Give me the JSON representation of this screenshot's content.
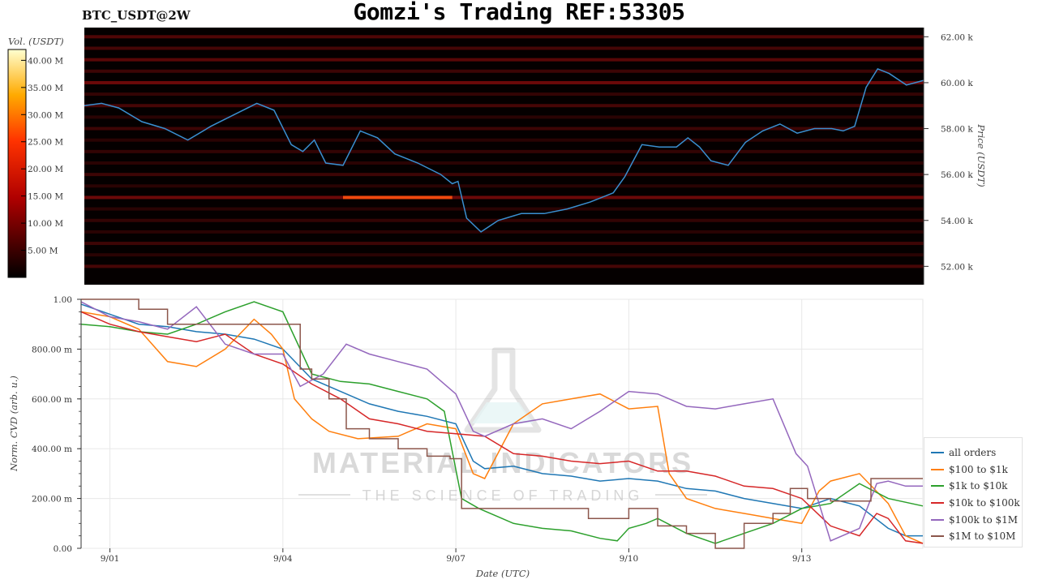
{
  "header": {
    "title": "Gomzi's Trading REF:53305",
    "symbol": "BTC_USDT@2W"
  },
  "watermark": {
    "brand": "MATERIAL INDICATORS",
    "tagline": "THE SCIENCE OF TRADING"
  },
  "colors": {
    "all_orders": "#1f77b4",
    "100_1k": "#ff7f0e",
    "1k_10k": "#2ca02c",
    "10k_100k": "#d62728",
    "100k_1M": "#9467bd",
    "1M_10M": "#8c564b",
    "price_line": "#3a8fd0"
  },
  "chart_data": [
    {
      "type": "heatmap",
      "colorbar": {
        "label": "Vol. (USDT)",
        "range": [
          0,
          42
        ],
        "ticks": [
          "5.00 M",
          "10.00 M",
          "15.00 M",
          "20.00 M",
          "25.00 M",
          "30.00 M",
          "35.00 M",
          "40.00 M"
        ],
        "tick_values": [
          5,
          10,
          15,
          20,
          25,
          30,
          35,
          40
        ]
      },
      "price_axis": {
        "label": "Price (USDT)",
        "range": [
          51.2,
          62.4
        ],
        "ticks": [
          "52.00 k",
          "54.00 k",
          "56.00 k",
          "58.00 k",
          "60.00 k",
          "62.00 k"
        ],
        "tick_values": [
          52,
          54,
          56,
          58,
          60,
          62
        ]
      },
      "x_range": [
        0,
        14.6
      ],
      "wall_levels": [
        52,
        52.5,
        53,
        53.5,
        54,
        54.5,
        55,
        55.5,
        56,
        56.5,
        57,
        57.5,
        58,
        58.5,
        59,
        59.5,
        60,
        60.5,
        61,
        61.5,
        62
      ],
      "wall_intensity": [
        0.35,
        0.2,
        0.3,
        0.2,
        0.25,
        0.2,
        0.55,
        0.2,
        0.3,
        0.2,
        0.25,
        0.2,
        0.3,
        0.2,
        0.35,
        0.25,
        0.55,
        0.3,
        0.45,
        0.35,
        0.4
      ],
      "price_series": {
        "x": [
          0,
          0.3,
          0.6,
          1.0,
          1.4,
          1.8,
          2.2,
          2.6,
          3.0,
          3.3,
          3.6,
          3.8,
          4.0,
          4.2,
          4.5,
          4.8,
          5.1,
          5.4,
          5.8,
          6.2,
          6.4,
          6.5,
          6.65,
          6.9,
          7.2,
          7.6,
          8.0,
          8.4,
          8.8,
          9.2,
          9.4,
          9.7,
          10.0,
          10.3,
          10.5,
          10.7,
          10.9,
          11.2,
          11.5,
          11.8,
          12.1,
          12.4,
          12.7,
          13.0,
          13.2,
          13.4,
          13.6,
          13.8,
          14.0,
          14.3,
          14.6
        ],
        "y": [
          59.0,
          59.1,
          58.9,
          58.3,
          58.0,
          57.5,
          58.1,
          58.6,
          59.1,
          58.8,
          57.3,
          57.0,
          57.5,
          56.5,
          56.4,
          57.9,
          57.6,
          56.9,
          56.5,
          56.0,
          55.6,
          55.7,
          54.1,
          53.5,
          54.0,
          54.3,
          54.3,
          54.5,
          54.8,
          55.2,
          55.9,
          57.3,
          57.2,
          57.2,
          57.6,
          57.2,
          56.6,
          56.4,
          57.4,
          57.9,
          58.2,
          57.8,
          58.0,
          58.0,
          57.9,
          58.1,
          59.8,
          60.6,
          60.4,
          59.9,
          60.1
        ]
      }
    },
    {
      "type": "line",
      "xlabel": "Date (UTC)",
      "ylabel": "Norm. CVD (arb. u.)",
      "x_ticks": [
        "9/01",
        "9/04",
        "9/07",
        "9/10",
        "9/13"
      ],
      "x_tick_values": [
        0.5,
        3.5,
        6.5,
        9.5,
        12.5
      ],
      "xlim": [
        0,
        14.6
      ],
      "ylim": [
        0,
        1
      ],
      "y_ticks": [
        "0.00",
        "200.00 m",
        "400.00 m",
        "600.00 m",
        "800.00 m",
        "1.00"
      ],
      "y_tick_values": [
        0,
        0.2,
        0.4,
        0.6,
        0.8,
        1.0
      ],
      "legend_position": "bottom-right",
      "series": [
        {
          "name": "all orders",
          "x": [
            0,
            0.5,
            1.0,
            1.5,
            2.0,
            2.5,
            3.0,
            3.5,
            4.0,
            4.5,
            5.0,
            5.5,
            6.0,
            6.5,
            6.8,
            7.0,
            7.5,
            8.0,
            8.5,
            9.0,
            9.5,
            10.0,
            10.5,
            11.0,
            11.5,
            12.0,
            12.5,
            13.0,
            13.5,
            14.0,
            14.3,
            14.6
          ],
          "y": [
            0.98,
            0.94,
            0.9,
            0.89,
            0.87,
            0.86,
            0.84,
            0.8,
            0.68,
            0.63,
            0.58,
            0.55,
            0.53,
            0.5,
            0.35,
            0.32,
            0.33,
            0.3,
            0.29,
            0.27,
            0.28,
            0.27,
            0.24,
            0.23,
            0.2,
            0.18,
            0.16,
            0.2,
            0.17,
            0.08,
            0.05,
            0.05
          ]
        },
        {
          "name": "$100 to $1k",
          "x": [
            0,
            0.5,
            1.0,
            1.5,
            2.0,
            2.5,
            3.0,
            3.3,
            3.5,
            3.7,
            4.0,
            4.3,
            4.8,
            5.5,
            6.0,
            6.5,
            6.8,
            7.0,
            7.5,
            8.0,
            8.5,
            9.0,
            9.5,
            10.0,
            10.2,
            10.5,
            11.0,
            11.5,
            12.0,
            12.5,
            12.8,
            13.0,
            13.5,
            14.0,
            14.3,
            14.6
          ],
          "y": [
            0.95,
            0.93,
            0.88,
            0.75,
            0.73,
            0.8,
            0.92,
            0.86,
            0.8,
            0.6,
            0.52,
            0.47,
            0.44,
            0.45,
            0.5,
            0.48,
            0.3,
            0.28,
            0.5,
            0.58,
            0.6,
            0.62,
            0.56,
            0.57,
            0.3,
            0.2,
            0.16,
            0.14,
            0.12,
            0.1,
            0.23,
            0.27,
            0.3,
            0.18,
            0.05,
            0.02
          ]
        },
        {
          "name": "$1k to $10k",
          "x": [
            0,
            0.5,
            1.0,
            1.5,
            2.0,
            2.5,
            3.0,
            3.5,
            4.0,
            4.5,
            5.0,
            5.5,
            6.0,
            6.3,
            6.6,
            6.9,
            7.5,
            8.0,
            8.5,
            9.0,
            9.3,
            9.5,
            9.8,
            10.0,
            10.5,
            11.0,
            11.5,
            12.0,
            12.5,
            13.0,
            13.5,
            14.0,
            14.6
          ],
          "y": [
            0.9,
            0.89,
            0.87,
            0.86,
            0.9,
            0.95,
            0.99,
            0.95,
            0.7,
            0.67,
            0.66,
            0.63,
            0.6,
            0.55,
            0.2,
            0.16,
            0.1,
            0.08,
            0.07,
            0.04,
            0.03,
            0.08,
            0.1,
            0.12,
            0.06,
            0.02,
            0.06,
            0.1,
            0.16,
            0.18,
            0.26,
            0.2,
            0.17
          ]
        },
        {
          "name": "$10k to $100k",
          "x": [
            0,
            0.5,
            1.0,
            1.5,
            2.0,
            2.5,
            3.0,
            3.5,
            4.0,
            4.5,
            5.0,
            5.5,
            6.0,
            6.5,
            7.0,
            7.5,
            8.0,
            8.5,
            9.0,
            9.5,
            10.0,
            10.5,
            11.0,
            11.5,
            12.0,
            12.5,
            13.0,
            13.5,
            13.8,
            14.0,
            14.3,
            14.6
          ],
          "y": [
            0.95,
            0.9,
            0.87,
            0.85,
            0.83,
            0.86,
            0.78,
            0.74,
            0.66,
            0.6,
            0.52,
            0.5,
            0.47,
            0.46,
            0.45,
            0.38,
            0.37,
            0.35,
            0.34,
            0.35,
            0.31,
            0.31,
            0.29,
            0.25,
            0.24,
            0.2,
            0.09,
            0.05,
            0.14,
            0.12,
            0.03,
            0.02
          ]
        },
        {
          "name": "$100k to $1M",
          "x": [
            0,
            0.5,
            1.0,
            1.5,
            2.0,
            2.5,
            3.0,
            3.5,
            3.8,
            4.2,
            4.6,
            5.0,
            5.5,
            6.0,
            6.5,
            6.8,
            7.0,
            7.5,
            8.0,
            8.5,
            9.0,
            9.5,
            10.0,
            10.5,
            11.0,
            11.5,
            12.0,
            12.4,
            12.6,
            13.0,
            13.5,
            13.8,
            14.0,
            14.3,
            14.6
          ],
          "y": [
            0.99,
            0.93,
            0.91,
            0.88,
            0.97,
            0.82,
            0.78,
            0.78,
            0.65,
            0.7,
            0.82,
            0.78,
            0.75,
            0.72,
            0.62,
            0.47,
            0.45,
            0.5,
            0.52,
            0.48,
            0.55,
            0.63,
            0.62,
            0.57,
            0.56,
            0.58,
            0.6,
            0.38,
            0.33,
            0.03,
            0.08,
            0.26,
            0.27,
            0.25,
            0.25
          ]
        },
        {
          "name": "$1M to $10M",
          "step": true,
          "x": [
            0,
            0.8,
            1.0,
            1.5,
            2.5,
            3.0,
            3.5,
            3.8,
            4.0,
            4.3,
            4.6,
            5.0,
            5.5,
            6.0,
            6.4,
            6.6,
            7.0,
            8.0,
            8.8,
            9.5,
            10.0,
            10.5,
            11.0,
            11.5,
            12.0,
            12.3,
            12.6,
            13.0,
            13.4,
            13.7,
            14.0,
            14.6
          ],
          "y": [
            1.0,
            1.0,
            0.96,
            0.9,
            0.9,
            0.9,
            0.9,
            0.72,
            0.68,
            0.6,
            0.48,
            0.44,
            0.4,
            0.37,
            0.36,
            0.16,
            0.16,
            0.16,
            0.12,
            0.16,
            0.09,
            0.06,
            0.0,
            0.1,
            0.14,
            0.24,
            0.2,
            0.19,
            0.19,
            0.28,
            0.28,
            0.28
          ]
        }
      ]
    }
  ]
}
